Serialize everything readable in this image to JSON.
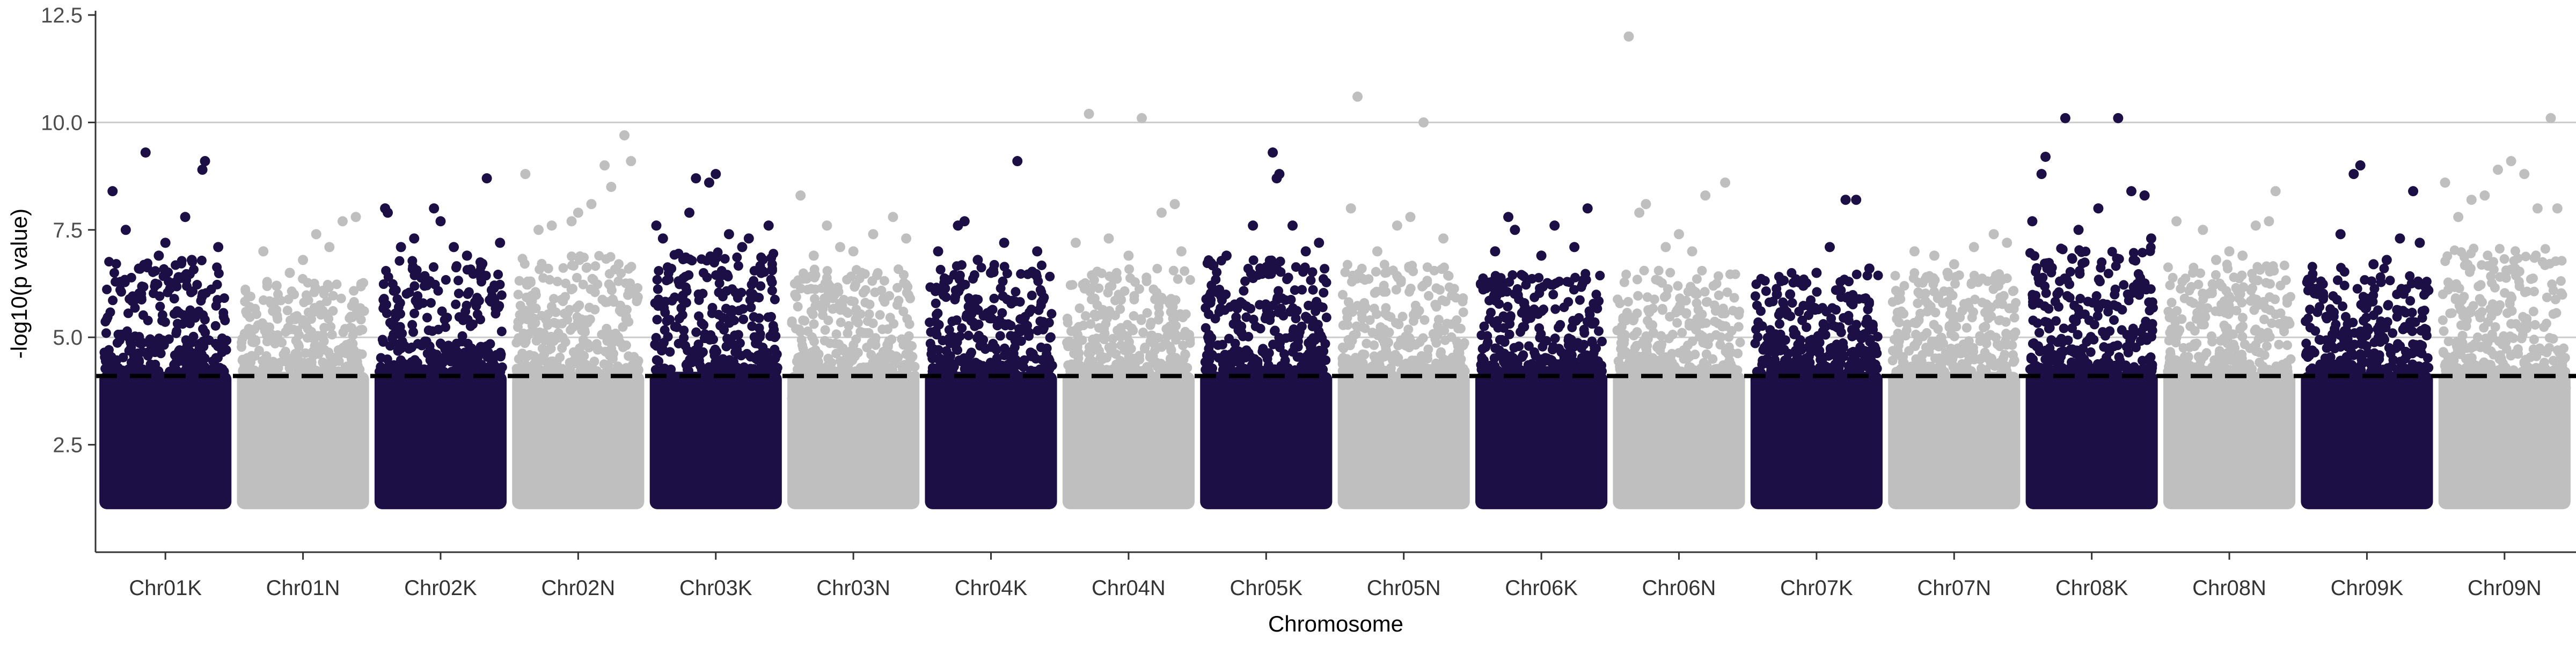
{
  "chart_data": {
    "type": "scatter",
    "title": "",
    "xlabel": "Chromosome",
    "ylabel": "-log10(p value)",
    "ylim": [
      0.0,
      12.5
    ],
    "y_ticks": [
      "2.5",
      "5.0",
      "7.5",
      "10.0",
      "12.5"
    ],
    "y_tick_values": [
      2.5,
      5.0,
      7.5,
      10.0,
      12.5
    ],
    "grid": "horizontal",
    "legend": "none",
    "threshold": 4.1,
    "colors": {
      "dark": "#1c0f45",
      "light": "#bfbfbf",
      "threshold": "#000000",
      "grid": "#cccccc"
    },
    "categories": [
      "Chr01K",
      "Chr01N",
      "Chr02K",
      "Chr02N",
      "Chr03K",
      "Chr03N",
      "Chr04K",
      "Chr04N",
      "Chr05K",
      "Chr05N",
      "Chr06K",
      "Chr06N",
      "Chr07K",
      "Chr07N",
      "Chr08K",
      "Chr08N",
      "Chr09K",
      "Chr09N"
    ],
    "series": [
      {
        "values": [
          {
            "band_top": 5.6,
            "points": [
              [
                0.1,
                8.4
              ],
              [
                0.35,
                9.3
              ],
              [
                0.2,
                7.5
              ],
              [
                0.5,
                7.2
              ],
              [
                0.65,
                7.8
              ],
              [
                0.78,
                8.9
              ],
              [
                0.8,
                9.1
              ],
              [
                0.9,
                7.1
              ],
              [
                0.45,
                6.9
              ],
              [
                0.7,
                6.8
              ],
              [
                0.3,
                6.6
              ],
              [
                0.6,
                6.4
              ]
            ]
          },
          {
            "band_top": 5.2,
            "points": [
              [
                0.2,
                7.0
              ],
              [
                0.4,
                6.5
              ],
              [
                0.6,
                7.4
              ],
              [
                0.8,
                7.7
              ],
              [
                0.9,
                7.8
              ],
              [
                0.5,
                6.8
              ],
              [
                0.7,
                7.1
              ],
              [
                0.3,
                6.2
              ]
            ]
          },
          {
            "band_top": 5.6,
            "points": [
              [
                0.08,
                8.0
              ],
              [
                0.1,
                7.9
              ],
              [
                0.3,
                7.3
              ],
              [
                0.45,
                8.0
              ],
              [
                0.5,
                7.7
              ],
              [
                0.6,
                7.1
              ],
              [
                0.85,
                8.7
              ],
              [
                0.95,
                7.2
              ],
              [
                0.7,
                6.9
              ],
              [
                0.2,
                7.1
              ]
            ]
          },
          {
            "band_top": 5.7,
            "points": [
              [
                0.1,
                8.8
              ],
              [
                0.3,
                7.6
              ],
              [
                0.45,
                7.7
              ],
              [
                0.6,
                8.1
              ],
              [
                0.7,
                9.0
              ],
              [
                0.85,
                9.7
              ],
              [
                0.9,
                9.1
              ],
              [
                0.75,
                8.5
              ],
              [
                0.5,
                7.9
              ],
              [
                0.2,
                7.5
              ]
            ]
          },
          {
            "band_top": 5.8,
            "points": [
              [
                0.05,
                7.6
              ],
              [
                0.1,
                7.3
              ],
              [
                0.35,
                8.7
              ],
              [
                0.45,
                8.6
              ],
              [
                0.5,
                8.8
              ],
              [
                0.6,
                7.4
              ],
              [
                0.75,
                7.3
              ],
              [
                0.9,
                7.6
              ],
              [
                0.3,
                7.9
              ],
              [
                0.7,
                7.1
              ]
            ]
          },
          {
            "band_top": 5.4,
            "points": [
              [
                0.1,
                8.3
              ],
              [
                0.3,
                7.6
              ],
              [
                0.5,
                7.0
              ],
              [
                0.65,
                7.4
              ],
              [
                0.8,
                7.8
              ],
              [
                0.9,
                7.3
              ],
              [
                0.4,
                7.1
              ],
              [
                0.2,
                6.9
              ]
            ]
          },
          {
            "band_top": 5.5,
            "points": [
              [
                0.1,
                7.0
              ],
              [
                0.25,
                7.6
              ],
              [
                0.3,
                7.7
              ],
              [
                0.5,
                6.5
              ],
              [
                0.7,
                9.1
              ],
              [
                0.85,
                7.0
              ],
              [
                0.6,
                7.2
              ],
              [
                0.4,
                6.8
              ]
            ]
          },
          {
            "band_top": 5.4,
            "points": [
              [
                0.2,
                10.2
              ],
              [
                0.6,
                10.1
              ],
              [
                0.1,
                7.2
              ],
              [
                0.35,
                7.3
              ],
              [
                0.75,
                7.9
              ],
              [
                0.85,
                8.1
              ],
              [
                0.5,
                6.9
              ],
              [
                0.9,
                7.0
              ]
            ]
          },
          {
            "band_top": 5.6,
            "points": [
              [
                0.55,
                9.3
              ],
              [
                0.6,
                8.8
              ],
              [
                0.58,
                8.7
              ],
              [
                0.4,
                7.6
              ],
              [
                0.7,
                7.6
              ],
              [
                0.2,
                6.9
              ],
              [
                0.9,
                7.2
              ],
              [
                0.8,
                7.0
              ]
            ]
          },
          {
            "band_top": 5.5,
            "points": [
              [
                0.1,
                8.0
              ],
              [
                0.15,
                10.6
              ],
              [
                0.65,
                10.0
              ],
              [
                0.55,
                7.8
              ],
              [
                0.3,
                7.0
              ],
              [
                0.8,
                7.3
              ],
              [
                0.45,
                7.6
              ]
            ]
          },
          {
            "band_top": 5.3,
            "points": [
              [
                0.25,
                7.8
              ],
              [
                0.3,
                7.5
              ],
              [
                0.6,
                7.6
              ],
              [
                0.75,
                7.1
              ],
              [
                0.85,
                8.0
              ],
              [
                0.5,
                6.9
              ],
              [
                0.15,
                7.0
              ]
            ]
          },
          {
            "band_top": 5.4,
            "points": [
              [
                0.12,
                12.0
              ],
              [
                0.2,
                7.9
              ],
              [
                0.25,
                8.1
              ],
              [
                0.5,
                7.4
              ],
              [
                0.7,
                8.3
              ],
              [
                0.85,
                8.6
              ],
              [
                0.4,
                7.1
              ],
              [
                0.6,
                7.0
              ]
            ]
          },
          {
            "band_top": 5.3,
            "points": [
              [
                0.3,
                6.0
              ],
              [
                0.5,
                6.5
              ],
              [
                0.6,
                7.1
              ],
              [
                0.72,
                8.2
              ],
              [
                0.8,
                8.2
              ],
              [
                0.9,
                6.6
              ],
              [
                0.4,
                6.2
              ],
              [
                0.2,
                6.0
              ]
            ]
          },
          {
            "band_top": 5.3,
            "points": [
              [
                0.2,
                7.0
              ],
              [
                0.35,
                6.9
              ],
              [
                0.5,
                6.7
              ],
              [
                0.65,
                7.1
              ],
              [
                0.8,
                7.4
              ],
              [
                0.9,
                7.2
              ],
              [
                0.45,
                6.5
              ]
            ]
          },
          {
            "band_top": 5.9,
            "points": [
              [
                0.05,
                7.7
              ],
              [
                0.12,
                8.8
              ],
              [
                0.15,
                9.2
              ],
              [
                0.3,
                10.1
              ],
              [
                0.55,
                8.0
              ],
              [
                0.7,
                10.1
              ],
              [
                0.8,
                8.4
              ],
              [
                0.9,
                8.3
              ],
              [
                0.95,
                7.3
              ],
              [
                0.4,
                7.5
              ]
            ]
          },
          {
            "band_top": 5.5,
            "points": [
              [
                0.1,
                7.7
              ],
              [
                0.3,
                7.5
              ],
              [
                0.5,
                7.0
              ],
              [
                0.7,
                7.6
              ],
              [
                0.8,
                7.7
              ],
              [
                0.85,
                8.4
              ],
              [
                0.4,
                6.8
              ],
              [
                0.6,
                6.9
              ]
            ]
          },
          {
            "band_top": 5.5,
            "points": [
              [
                0.3,
                7.4
              ],
              [
                0.4,
                8.8
              ],
              [
                0.45,
                9.0
              ],
              [
                0.65,
                6.8
              ],
              [
                0.75,
                7.3
              ],
              [
                0.85,
                8.4
              ],
              [
                0.9,
                7.2
              ],
              [
                0.55,
                6.7
              ]
            ]
          },
          {
            "band_top": 5.9,
            "points": [
              [
                0.05,
                8.6
              ],
              [
                0.25,
                8.2
              ],
              [
                0.35,
                8.3
              ],
              [
                0.45,
                8.9
              ],
              [
                0.55,
                9.1
              ],
              [
                0.65,
                8.8
              ],
              [
                0.85,
                10.1
              ],
              [
                0.9,
                8.0
              ],
              [
                0.75,
                8.0
              ],
              [
                0.15,
                7.8
              ]
            ]
          }
        ]
      }
    ]
  }
}
